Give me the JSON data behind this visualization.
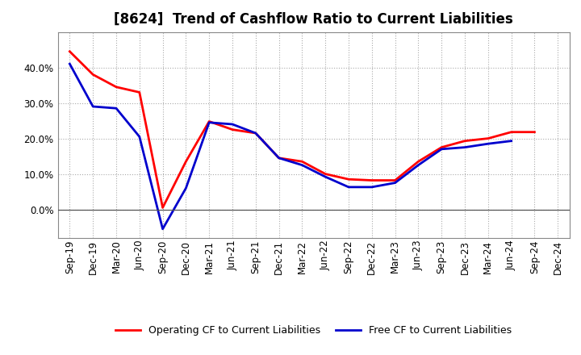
{
  "title": "[8624]  Trend of Cashflow Ratio to Current Liabilities",
  "x_labels": [
    "Sep-19",
    "Dec-19",
    "Mar-20",
    "Jun-20",
    "Sep-20",
    "Dec-20",
    "Mar-21",
    "Jun-21",
    "Sep-21",
    "Dec-21",
    "Mar-22",
    "Jun-22",
    "Sep-22",
    "Dec-22",
    "Mar-23",
    "Jun-23",
    "Sep-23",
    "Dec-23",
    "Mar-24",
    "Jun-24",
    "Sep-24",
    "Dec-24"
  ],
  "operating_cf": [
    0.445,
    0.38,
    0.345,
    0.33,
    0.005,
    0.135,
    0.248,
    0.225,
    0.215,
    0.145,
    0.135,
    0.1,
    0.085,
    0.082,
    0.082,
    0.135,
    0.175,
    0.193,
    0.2,
    0.218,
    0.218,
    null
  ],
  "free_cf": [
    0.41,
    0.29,
    0.285,
    0.205,
    -0.055,
    0.06,
    0.245,
    0.24,
    0.215,
    0.145,
    0.125,
    0.092,
    0.063,
    0.063,
    0.075,
    0.125,
    0.17,
    0.175,
    0.185,
    0.193,
    null,
    null
  ],
  "operating_color": "#ff0000",
  "free_color": "#0000cd",
  "ylim": [
    -0.08,
    0.5
  ],
  "yticks": [
    0.0,
    0.1,
    0.2,
    0.3,
    0.4
  ],
  "background_color": "#ffffff",
  "grid_color": "#aaaaaa",
  "legend_operating": "Operating CF to Current Liabilities",
  "legend_free": "Free CF to Current Liabilities",
  "title_fontsize": 12,
  "tick_fontsize": 8.5
}
